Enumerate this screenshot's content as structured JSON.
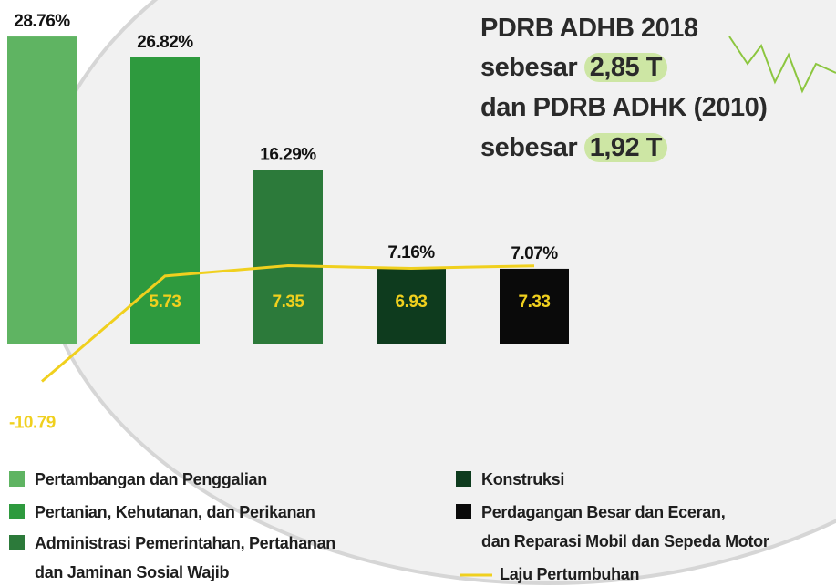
{
  "chart_data": {
    "type": "bar",
    "annotation": {
      "line1": "PDRB ADHB 2018",
      "line2": {
        "text": "sebesar",
        "highlight": "2,85 T"
      },
      "line3": "dan PDRB ADHK (2010)",
      "line4": {
        "text": "sebesar",
        "highlight": "1,92 T"
      }
    },
    "categories": [
      "Pertambangan dan Penggalian",
      "Pertanian, Kehutanan, dan Perikanan",
      "Administrasi Pemerintahan, Pertahanan\ndan Jaminan Sosial Wajib",
      "Konstruksi",
      "Perdagangan Besar dan Eceran,\ndan Reparasi Mobil dan Sepeda Motor"
    ],
    "values": [
      28.76,
      26.82,
      16.29,
      7.16,
      7.07
    ],
    "value_labels": [
      "28.76%",
      "26.82%",
      "16.29%",
      "7.16%",
      "7.07%"
    ],
    "colors": [
      "#5fb462",
      "#2e9a3e",
      "#2c7a3a",
      "#0e3b1e",
      "#0a0a0a"
    ],
    "line": {
      "name": "Laju Pertumbuhan",
      "color": "#f0d01e",
      "values": [
        -10.79,
        5.73,
        7.35,
        6.93,
        7.33
      ]
    }
  }
}
